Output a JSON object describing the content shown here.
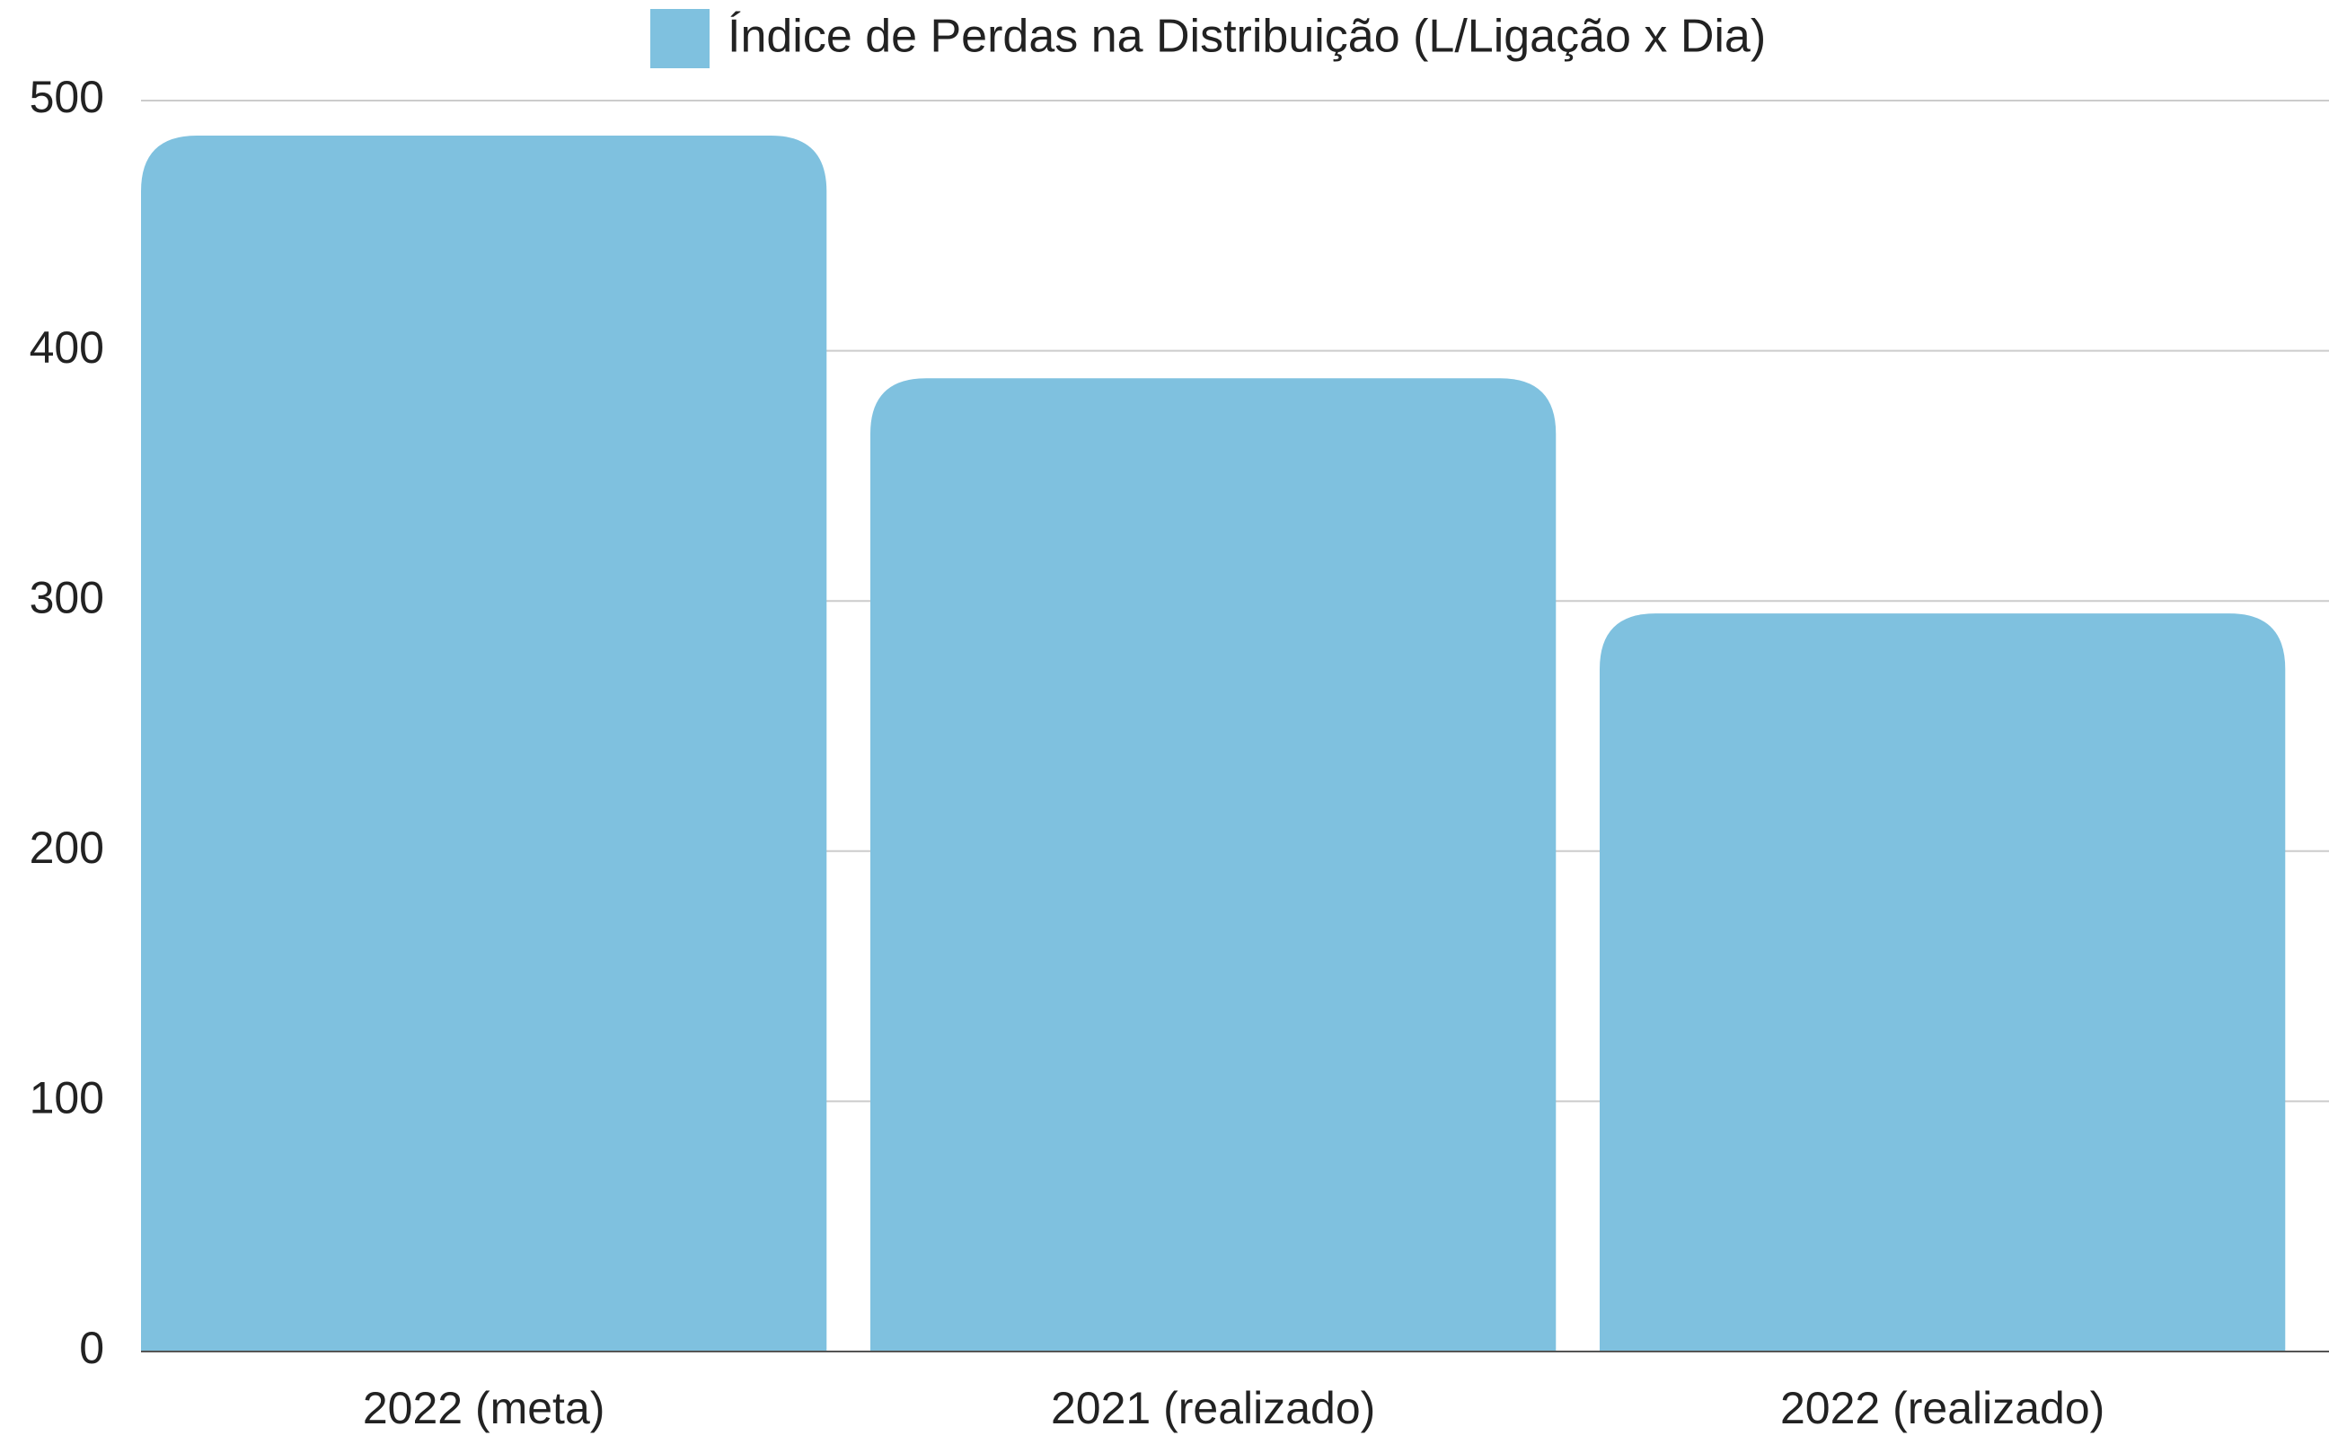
{
  "chart_data": {
    "type": "bar",
    "legend": "Índice de Perdas na Distribuição (L/Ligação x Dia)",
    "categories": [
      "2022 (meta)",
      "2021 (realizado)",
      "2022 (realizado)"
    ],
    "values": [
      486,
      389,
      295
    ],
    "color": "#7fc1df",
    "ylim": [
      0,
      500
    ],
    "yticks": [
      0,
      100,
      200,
      300,
      400,
      500
    ],
    "grid": true
  }
}
